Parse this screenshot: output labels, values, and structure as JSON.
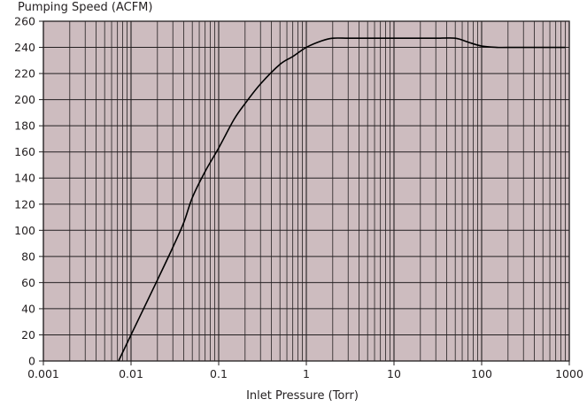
{
  "chart_data": {
    "type": "line",
    "title": "Pumping Speed (ACFM)",
    "xlabel": "Inlet Pressure (Torr)",
    "ylabel": "Pumping Speed (ACFM)",
    "x_scale": "log",
    "xlim": [
      0.001,
      1000
    ],
    "ylim": [
      0,
      260
    ],
    "grid": true,
    "x_ticks": [
      0.001,
      0.01,
      0.1,
      1,
      10,
      100,
      1000
    ],
    "x_tick_labels": [
      "0.001",
      "0.01",
      "0.1",
      "1",
      "10",
      "100",
      "1000"
    ],
    "y_ticks": [
      0,
      20,
      40,
      60,
      80,
      100,
      120,
      140,
      160,
      180,
      200,
      220,
      240,
      260
    ],
    "y_tick_labels": [
      "0",
      "20",
      "40",
      "60",
      "80",
      "100",
      "120",
      "140",
      "160",
      "180",
      "200",
      "220",
      "240",
      "260"
    ],
    "series": [
      {
        "x": [
          0.0072,
          0.01,
          0.02,
          0.03,
          0.04,
          0.05,
          0.07,
          0.1,
          0.15,
          0.2,
          0.3,
          0.5,
          0.7,
          1.0,
          1.5,
          2.0,
          3.0,
          5.0,
          10,
          20,
          30,
          50,
          70,
          100,
          150,
          200,
          500,
          900
        ],
        "y": [
          0,
          20,
          62,
          87,
          106,
          125,
          145,
          163,
          185,
          197,
          212,
          227,
          233,
          240,
          245,
          247,
          247,
          247,
          247,
          247,
          247,
          247,
          244,
          241,
          240,
          240,
          240,
          240
        ]
      }
    ],
    "colors": {
      "plot_background": "#cdbcbf",
      "grid": "#231f20",
      "line": "#000000"
    }
  }
}
